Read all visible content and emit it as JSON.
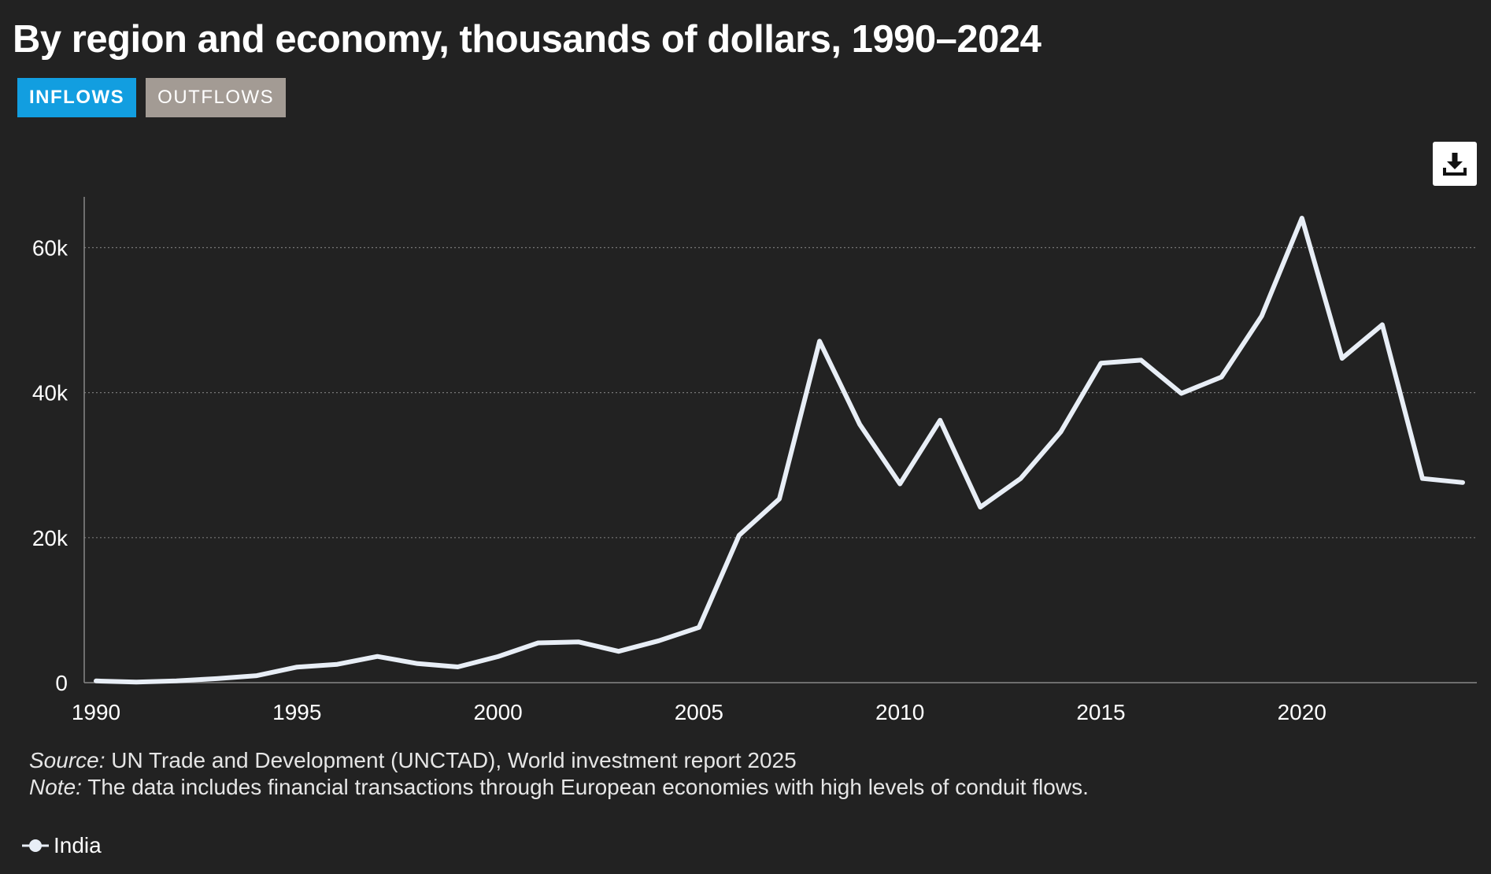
{
  "header": {
    "title": "By region and economy, thousands of dollars, 1990–2024"
  },
  "tabs": [
    {
      "label": "INFLOWS",
      "active": true
    },
    {
      "label": "OUTFLOWS",
      "active": false
    }
  ],
  "toolbar": {
    "download_icon": "download-icon"
  },
  "footer": {
    "source_lead": "Source:",
    "source_text": " UN Trade and Development (UNCTAD), World investment report 2025",
    "note_lead": "Note:",
    "note_text": " The data includes financial transactions through European economies with high levels of conduit flows."
  },
  "colors": {
    "background": "#222222",
    "line": "#e8eef6",
    "active_tab": "#129ee0",
    "inactive_tab": "#a39b94",
    "grid": "#777777",
    "axis": "#888888"
  },
  "chart_data": {
    "type": "line",
    "title": "By region and economy, thousands of dollars, 1990–2024",
    "xlabel": "",
    "ylabel": "",
    "xlim": [
      1990,
      2024
    ],
    "ylim": [
      0,
      67000
    ],
    "xticks": [
      1990,
      1995,
      2000,
      2005,
      2010,
      2015,
      2020
    ],
    "xtick_labels": [
      "1990",
      "1995",
      "2000",
      "2005",
      "2010",
      "2015",
      "2020"
    ],
    "yticks": [
      0,
      20000,
      40000,
      60000
    ],
    "ytick_labels": [
      "0",
      "20k",
      "40k",
      "60k"
    ],
    "grid": "horizontal dotted",
    "legend_position": "bottom-left",
    "series": [
      {
        "name": "India",
        "x": [
          1990,
          1991,
          1992,
          1993,
          1994,
          1995,
          1996,
          1997,
          1998,
          1999,
          2000,
          2001,
          2002,
          2003,
          2004,
          2005,
          2006,
          2007,
          2008,
          2009,
          2010,
          2011,
          2012,
          2013,
          2014,
          2015,
          2016,
          2017,
          2018,
          2019,
          2020,
          2021,
          2022,
          2023,
          2024
        ],
        "values": [
          240,
          75,
          250,
          550,
          970,
          2150,
          2530,
          3620,
          2630,
          2170,
          3590,
          5480,
          5630,
          4320,
          5780,
          7620,
          20330,
          25350,
          47100,
          35630,
          27420,
          36190,
          24200,
          28150,
          34580,
          44060,
          44480,
          39900,
          42160,
          50560,
          64070,
          44730,
          49360,
          28160,
          27600
        ]
      }
    ]
  }
}
